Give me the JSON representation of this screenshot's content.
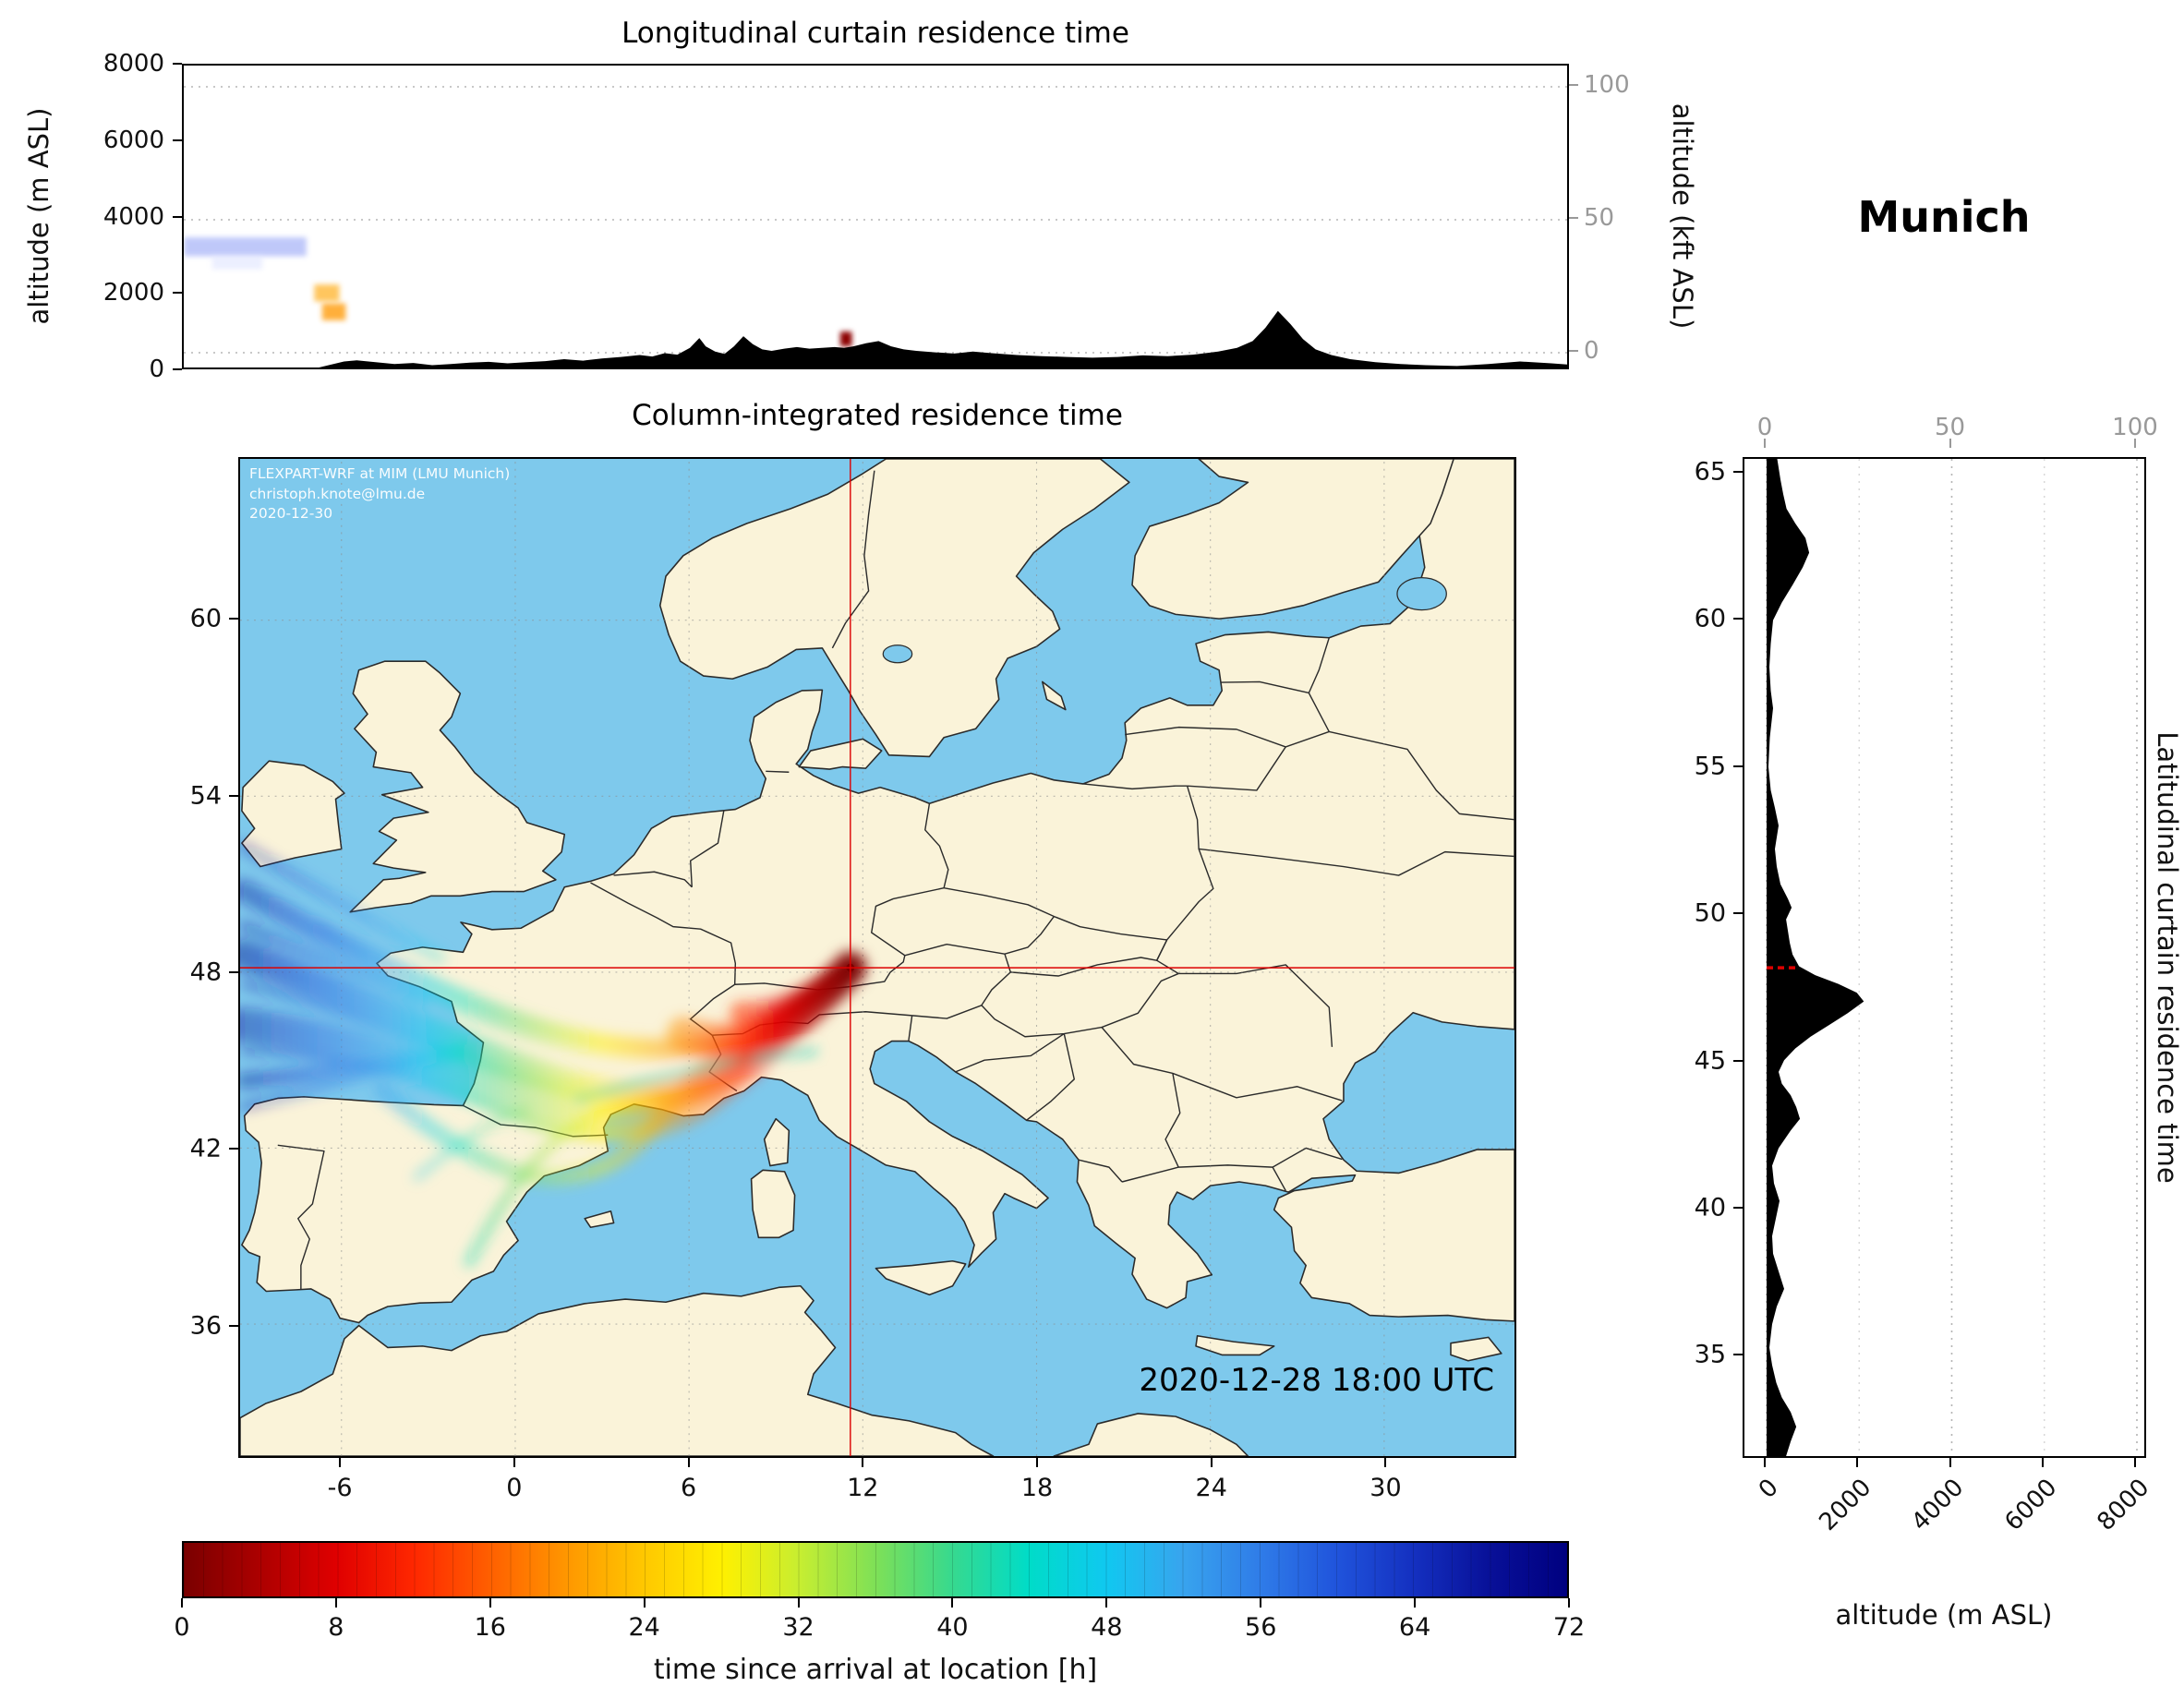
{
  "header": {
    "location_title": "Munich"
  },
  "map_overlay": {
    "credit_lines": [
      "FLEXPART-WRF at MIM (LMU Munich)",
      "christoph.knote@lmu.de",
      "2020-12-30"
    ],
    "timestamp": "2020-12-28 18:00 UTC"
  },
  "chart_data": [
    {
      "id": "longitudinal_curtain",
      "type": "area",
      "title": "Longitudinal curtain residence time",
      "ylabel_left": "altitude (m ASL)",
      "ylabel_right": "altitude (kft ASL)",
      "x_range_lon": [
        -9.5,
        34.5
      ],
      "y_range_m": [
        0,
        8000
      ],
      "y_ticks_m": [
        0,
        2000,
        4000,
        6000,
        8000
      ],
      "y_ticks_kft": [
        0,
        50,
        100
      ],
      "grid": "dotted horizontal lines at secondary-axis ticks",
      "terrain_profile_m": [
        [
          -9.5,
          0
        ],
        [
          -5.2,
          0
        ],
        [
          -4.8,
          80
        ],
        [
          -4.4,
          160
        ],
        [
          -4.0,
          190
        ],
        [
          -3.4,
          140
        ],
        [
          -2.8,
          90
        ],
        [
          -2.2,
          120
        ],
        [
          -1.6,
          60
        ],
        [
          -1.0,
          90
        ],
        [
          -0.4,
          130
        ],
        [
          0.2,
          150
        ],
        [
          0.8,
          110
        ],
        [
          1.4,
          140
        ],
        [
          2.0,
          170
        ],
        [
          2.6,
          220
        ],
        [
          3.2,
          180
        ],
        [
          3.8,
          240
        ],
        [
          4.4,
          280
        ],
        [
          5.0,
          330
        ],
        [
          5.4,
          290
        ],
        [
          5.8,
          380
        ],
        [
          6.2,
          340
        ],
        [
          6.6,
          520
        ],
        [
          6.9,
          780
        ],
        [
          7.1,
          560
        ],
        [
          7.4,
          420
        ],
        [
          7.7,
          360
        ],
        [
          8.0,
          560
        ],
        [
          8.3,
          830
        ],
        [
          8.6,
          620
        ],
        [
          8.9,
          480
        ],
        [
          9.2,
          440
        ],
        [
          9.6,
          500
        ],
        [
          10.0,
          540
        ],
        [
          10.4,
          500
        ],
        [
          10.8,
          520
        ],
        [
          11.2,
          540
        ],
        [
          11.5,
          520
        ],
        [
          11.8,
          560
        ],
        [
          12.2,
          640
        ],
        [
          12.6,
          700
        ],
        [
          13.0,
          560
        ],
        [
          13.4,
          480
        ],
        [
          13.8,
          440
        ],
        [
          14.4,
          400
        ],
        [
          15.0,
          370
        ],
        [
          15.6,
          420
        ],
        [
          16.2,
          380
        ],
        [
          17.0,
          330
        ],
        [
          17.8,
          300
        ],
        [
          18.6,
          280
        ],
        [
          19.4,
          260
        ],
        [
          20.2,
          280
        ],
        [
          21.0,
          320
        ],
        [
          21.8,
          300
        ],
        [
          22.6,
          340
        ],
        [
          23.4,
          420
        ],
        [
          24.0,
          520
        ],
        [
          24.5,
          700
        ],
        [
          24.9,
          1050
        ],
        [
          25.3,
          1500
        ],
        [
          25.7,
          1150
        ],
        [
          26.1,
          750
        ],
        [
          26.5,
          480
        ],
        [
          27.0,
          330
        ],
        [
          27.6,
          220
        ],
        [
          28.4,
          140
        ],
        [
          29.2,
          90
        ],
        [
          30.0,
          60
        ],
        [
          31.0,
          40
        ],
        [
          32.0,
          90
        ],
        [
          33.0,
          160
        ],
        [
          34.0,
          110
        ],
        [
          34.5,
          80
        ]
      ],
      "residence_patches": [
        {
          "lon": [
            -9.5,
            -5.6
          ],
          "alt_m": [
            2950,
            3450
          ],
          "time_h": 64,
          "color": "#aab6f8",
          "opacity": 0.75
        },
        {
          "lon": [
            -8.6,
            -7.0
          ],
          "alt_m": [
            2600,
            2950
          ],
          "time_h": 60,
          "color": "#dfe4ff",
          "opacity": 0.6
        },
        {
          "lon": [
            -5.35,
            -4.55
          ],
          "alt_m": [
            1750,
            2200
          ],
          "time_h": 20,
          "color": "#ffc04d",
          "opacity": 0.9
        },
        {
          "lon": [
            -5.1,
            -4.35
          ],
          "alt_m": [
            1250,
            1700
          ],
          "time_h": 18,
          "color": "#ffa726",
          "opacity": 0.9
        },
        {
          "lon": [
            11.38,
            11.75
          ],
          "alt_m": [
            560,
            950
          ],
          "time_h": 1,
          "color": "#8b0000",
          "opacity": 1
        }
      ]
    },
    {
      "id": "column_integrated_map",
      "type": "map",
      "title": "Column-integrated residence time",
      "lon_range": [
        -9.5,
        34.5
      ],
      "lat_range": [
        31.5,
        65.5
      ],
      "lon_ticks": [
        -6,
        0,
        6,
        12,
        18,
        24,
        30
      ],
      "lat_ticks": [
        36,
        42,
        48,
        54,
        60
      ],
      "receptor": {
        "name": "Munich",
        "lon": 11.57,
        "lat": 48.15
      },
      "crosshair_color": "#dd0000",
      "land_color": "#faf3d9",
      "ocean_color": "#7ec9ec",
      "plume_description": "Residence-time plume arriving at Munich from the west: 0-12 h (dark red to orange) over Bavaria, Switzerland and the western Alps; 16-32 h (orange to yellow-green) over southern France and the Gulf of Lion; 36-48 h (green to cyan) over Catalonia and the western Mediterranean; 52-72 h (blue to dark blue) fanning out over the Bay of Biscay and the Atlantic west of Iberia."
    },
    {
      "id": "latitudinal_curtain",
      "type": "area",
      "title_right": "Latitudinal curtain residence time",
      "xlabel": "altitude (m ASL)",
      "x_range_m": [
        0,
        8000
      ],
      "x_ticks_m": [
        0,
        2000,
        4000,
        6000,
        8000
      ],
      "x_ticks_kft": [
        0,
        50,
        100
      ],
      "y_range_lat": [
        31.5,
        65.5
      ],
      "y_ticks_lat": [
        35,
        40,
        45,
        50,
        55,
        60,
        65
      ],
      "terrain_profile_m": [
        [
          31.5,
          420
        ],
        [
          32.0,
          520
        ],
        [
          32.5,
          640
        ],
        [
          33.0,
          520
        ],
        [
          33.5,
          330
        ],
        [
          34.0,
          210
        ],
        [
          34.6,
          120
        ],
        [
          35.2,
          60
        ],
        [
          36.0,
          120
        ],
        [
          36.6,
          220
        ],
        [
          37.2,
          380
        ],
        [
          37.8,
          260
        ],
        [
          38.4,
          140
        ],
        [
          39.0,
          120
        ],
        [
          39.6,
          200
        ],
        [
          40.2,
          280
        ],
        [
          40.8,
          160
        ],
        [
          41.4,
          120
        ],
        [
          42.0,
          260
        ],
        [
          42.6,
          520
        ],
        [
          43.0,
          720
        ],
        [
          43.4,
          640
        ],
        [
          43.8,
          520
        ],
        [
          44.2,
          330
        ],
        [
          44.6,
          260
        ],
        [
          45.0,
          380
        ],
        [
          45.4,
          620
        ],
        [
          45.8,
          950
        ],
        [
          46.2,
          1350
        ],
        [
          46.6,
          1750
        ],
        [
          47.0,
          2100
        ],
        [
          47.3,
          1950
        ],
        [
          47.6,
          1550
        ],
        [
          47.9,
          1050
        ],
        [
          48.2,
          700
        ],
        [
          48.6,
          560
        ],
        [
          49.0,
          500
        ],
        [
          49.4,
          460
        ],
        [
          49.8,
          420
        ],
        [
          50.2,
          540
        ],
        [
          50.5,
          460
        ],
        [
          51.0,
          300
        ],
        [
          51.6,
          220
        ],
        [
          52.2,
          180
        ],
        [
          53.0,
          260
        ],
        [
          53.6,
          180
        ],
        [
          54.2,
          90
        ],
        [
          55.0,
          40
        ],
        [
          56.0,
          70
        ],
        [
          57.0,
          140
        ],
        [
          57.6,
          90
        ],
        [
          58.4,
          60
        ],
        [
          59.2,
          90
        ],
        [
          60.0,
          140
        ],
        [
          60.6,
          330
        ],
        [
          61.2,
          560
        ],
        [
          61.8,
          780
        ],
        [
          62.3,
          920
        ],
        [
          62.8,
          840
        ],
        [
          63.3,
          620
        ],
        [
          63.8,
          430
        ],
        [
          64.3,
          360
        ],
        [
          64.8,
          300
        ],
        [
          65.2,
          260
        ],
        [
          65.5,
          230
        ]
      ],
      "receptor_marker": {
        "lat": 48.15,
        "alt_extent_m": [
          0,
          650
        ],
        "color": "#dd0000",
        "style": "dashed"
      }
    },
    {
      "id": "time_colorbar",
      "type": "colorbar",
      "label": "time since arrival at location [h]",
      "range_h": [
        0,
        72
      ],
      "ticks_h": [
        0,
        8,
        16,
        24,
        32,
        40,
        48,
        56,
        64,
        72
      ],
      "stops": [
        [
          0,
          "#7a0000"
        ],
        [
          4,
          "#ad0000"
        ],
        [
          8,
          "#e00000"
        ],
        [
          12,
          "#ff2800"
        ],
        [
          16,
          "#ff6000"
        ],
        [
          20,
          "#ff9800"
        ],
        [
          24,
          "#ffc800"
        ],
        [
          28,
          "#fff000"
        ],
        [
          32,
          "#c8ee30"
        ],
        [
          36,
          "#7ee057"
        ],
        [
          40,
          "#36d98f"
        ],
        [
          44,
          "#00dcc8"
        ],
        [
          48,
          "#10c8f0"
        ],
        [
          52,
          "#38a4ee"
        ],
        [
          56,
          "#2f7ce8"
        ],
        [
          60,
          "#2054dc"
        ],
        [
          64,
          "#1430c0"
        ],
        [
          68,
          "#081098"
        ],
        [
          72,
          "#000080"
        ]
      ]
    }
  ]
}
